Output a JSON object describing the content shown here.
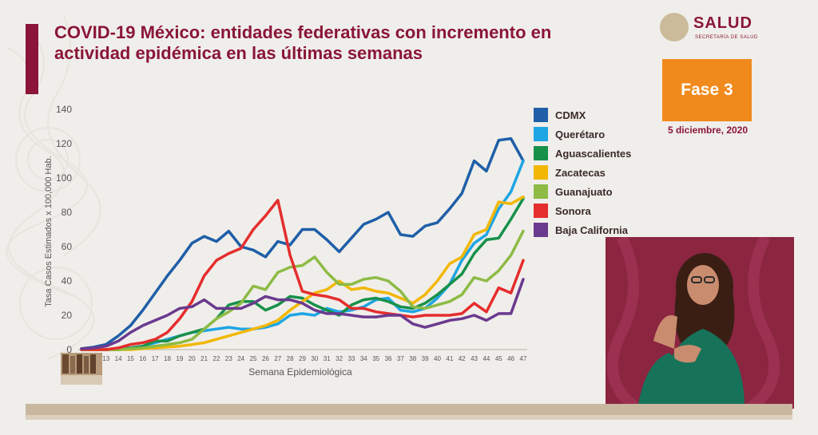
{
  "title_line1": "COVID-19 México: entidades federativas con incremento en",
  "title_line2": "actividad epidémica en las últimas semanas",
  "logo": {
    "name": "SALUD",
    "subtitle": "SECRETARÍA DE SALUD"
  },
  "phase": {
    "label": "Fase 3",
    "date": "5 diciembre, 2020"
  },
  "colors": {
    "accent": "#8a1538",
    "phase": "#f08a1c"
  },
  "chart_data": {
    "type": "line",
    "xlabel": "Semana Epidemiológica",
    "ylabel": "Tasa Casos Estimados x 100,000 Hab.",
    "ylim": [
      0,
      140
    ],
    "yticks": [
      0,
      20,
      40,
      60,
      80,
      100,
      120,
      140
    ],
    "grid": false,
    "legend_position": "right",
    "x": [
      11,
      12,
      13,
      14,
      15,
      16,
      17,
      18,
      19,
      20,
      21,
      22,
      23,
      24,
      25,
      26,
      27,
      28,
      29,
      30,
      31,
      32,
      33,
      34,
      35,
      36,
      37,
      38,
      39,
      40,
      41,
      42,
      43,
      44,
      45,
      46,
      47
    ],
    "series": [
      {
        "name": "CDMX",
        "color": "#1f5fa8",
        "values": [
          0.5,
          1.5,
          3,
          8,
          14,
          23,
          33,
          43,
          52,
          62,
          66,
          63,
          69,
          60,
          58,
          54,
          63,
          61,
          70,
          70,
          64,
          57,
          65,
          73,
          76,
          80,
          67,
          66,
          72,
          74,
          82,
          91,
          110,
          104,
          122,
          123,
          110
        ]
      },
      {
        "name": "Querétaro",
        "color": "#1ea5e4",
        "values": [
          0,
          0,
          0,
          0.5,
          1,
          2,
          4,
          6,
          8,
          10,
          11,
          12,
          13,
          12,
          12,
          13,
          15,
          20,
          21,
          20,
          24,
          22,
          23,
          25,
          29,
          30,
          23,
          22,
          24,
          30,
          38,
          52,
          62,
          67,
          82,
          92,
          110
        ]
      },
      {
        "name": "Aguascalientes",
        "color": "#17914a",
        "values": [
          0,
          0,
          0,
          0,
          1,
          2,
          5,
          5,
          8,
          10,
          12,
          18,
          26,
          28,
          28,
          23,
          26,
          31,
          30,
          26,
          23,
          20,
          26,
          29,
          30,
          28,
          25,
          24,
          27,
          32,
          38,
          44,
          56,
          64,
          65,
          76,
          88
        ]
      },
      {
        "name": "Zacatecas",
        "color": "#f2b705",
        "values": [
          0,
          0,
          0,
          0,
          0,
          0.5,
          1,
          1.5,
          2,
          3,
          4,
          6,
          8,
          10,
          12,
          14,
          17,
          23,
          28,
          33,
          35,
          40,
          35,
          36,
          34,
          33,
          30,
          27,
          32,
          40,
          50,
          54,
          67,
          70,
          86,
          85,
          89
        ]
      },
      {
        "name": "Guanajuato",
        "color": "#8dbb45",
        "values": [
          0,
          0,
          0,
          0,
          0.5,
          1,
          2,
          3,
          4,
          6,
          12,
          18,
          22,
          27,
          37,
          35,
          45,
          48,
          49,
          54,
          45,
          38,
          38,
          41,
          42,
          40,
          34,
          25,
          24,
          26,
          28,
          32,
          42,
          40,
          46,
          55,
          69
        ]
      },
      {
        "name": "Sonora",
        "color": "#e52d2d",
        "values": [
          0,
          0,
          0,
          1,
          3,
          4,
          6,
          10,
          18,
          28,
          43,
          52,
          56,
          59,
          70,
          78,
          87,
          55,
          34,
          32,
          31,
          29,
          24,
          24,
          22,
          21,
          20,
          19,
          20,
          20,
          20,
          21,
          27,
          22,
          36,
          33,
          52
        ]
      },
      {
        "name": "Baja California",
        "color": "#6a3a8e",
        "values": [
          0.5,
          1,
          2,
          5,
          10,
          14,
          17,
          20,
          24,
          25,
          29,
          24,
          24,
          24,
          27,
          31,
          29,
          29,
          27,
          23,
          21,
          21,
          20,
          19,
          19,
          20,
          20,
          15,
          13,
          15,
          17,
          18,
          20,
          17,
          21,
          21,
          41
        ]
      }
    ]
  }
}
